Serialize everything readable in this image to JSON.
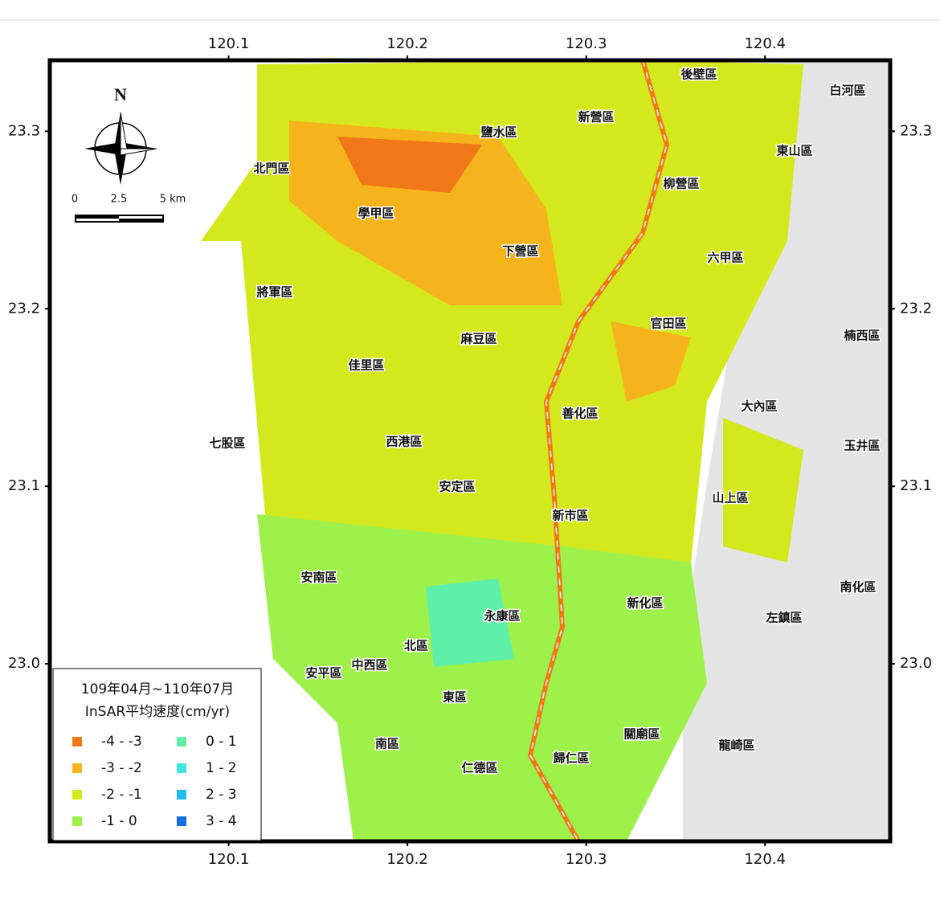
{
  "map": {
    "xlim": [
      120.0,
      120.47
    ],
    "ylim": [
      22.9,
      23.34
    ],
    "xticks": [
      120.1,
      120.2,
      120.3,
      120.4
    ],
    "yticks": [
      {
        "value": 23,
        "label": "23.0"
      },
      23.1,
      23.2,
      23.3
    ],
    "north": "N",
    "scale_bar": [
      "0",
      "2.5",
      "5 km"
    ],
    "districts": [
      "後壁區",
      "白河區",
      "新營區",
      "鹽水區",
      "東山區",
      "北門區",
      "柳營區",
      "學甲區",
      "下營區",
      "六甲區",
      "將軍區",
      "官田區",
      "麻豆區",
      "楠西區",
      "佳里區",
      "大內區",
      "善化區",
      "七股區",
      "西港區",
      "玉井區",
      "安定區",
      "山上區",
      "新市區",
      "安南區",
      "南化區",
      "新化區",
      "永康區",
      "左鎮區",
      "北區",
      "中西區",
      "安平區",
      "東區",
      "關廟區",
      "南區",
      "龍崎區",
      "仁德區",
      "歸仁區"
    ],
    "legend": {
      "title": [
        "109年04月~110年07月",
        "InSAR平均速度(cm/yr)"
      ],
      "items": [
        {
          "label": "-4 - -3",
          "color": "#f07818"
        },
        {
          "label": "-3 - -2",
          "color": "#f5b41c"
        },
        {
          "label": "-2 - -1",
          "color": "#d4e81e"
        },
        {
          "label": "-1 - 0",
          "color": "#9ef04a"
        },
        {
          "label": "0 - 1",
          "color": "#5ef0a8"
        },
        {
          "label": "1 - 2",
          "color": "#3ee8e0"
        },
        {
          "label": "2 - 3",
          "color": "#22c0f0"
        },
        {
          "label": "3 - 4",
          "color": "#1070e0"
        }
      ]
    }
  }
}
